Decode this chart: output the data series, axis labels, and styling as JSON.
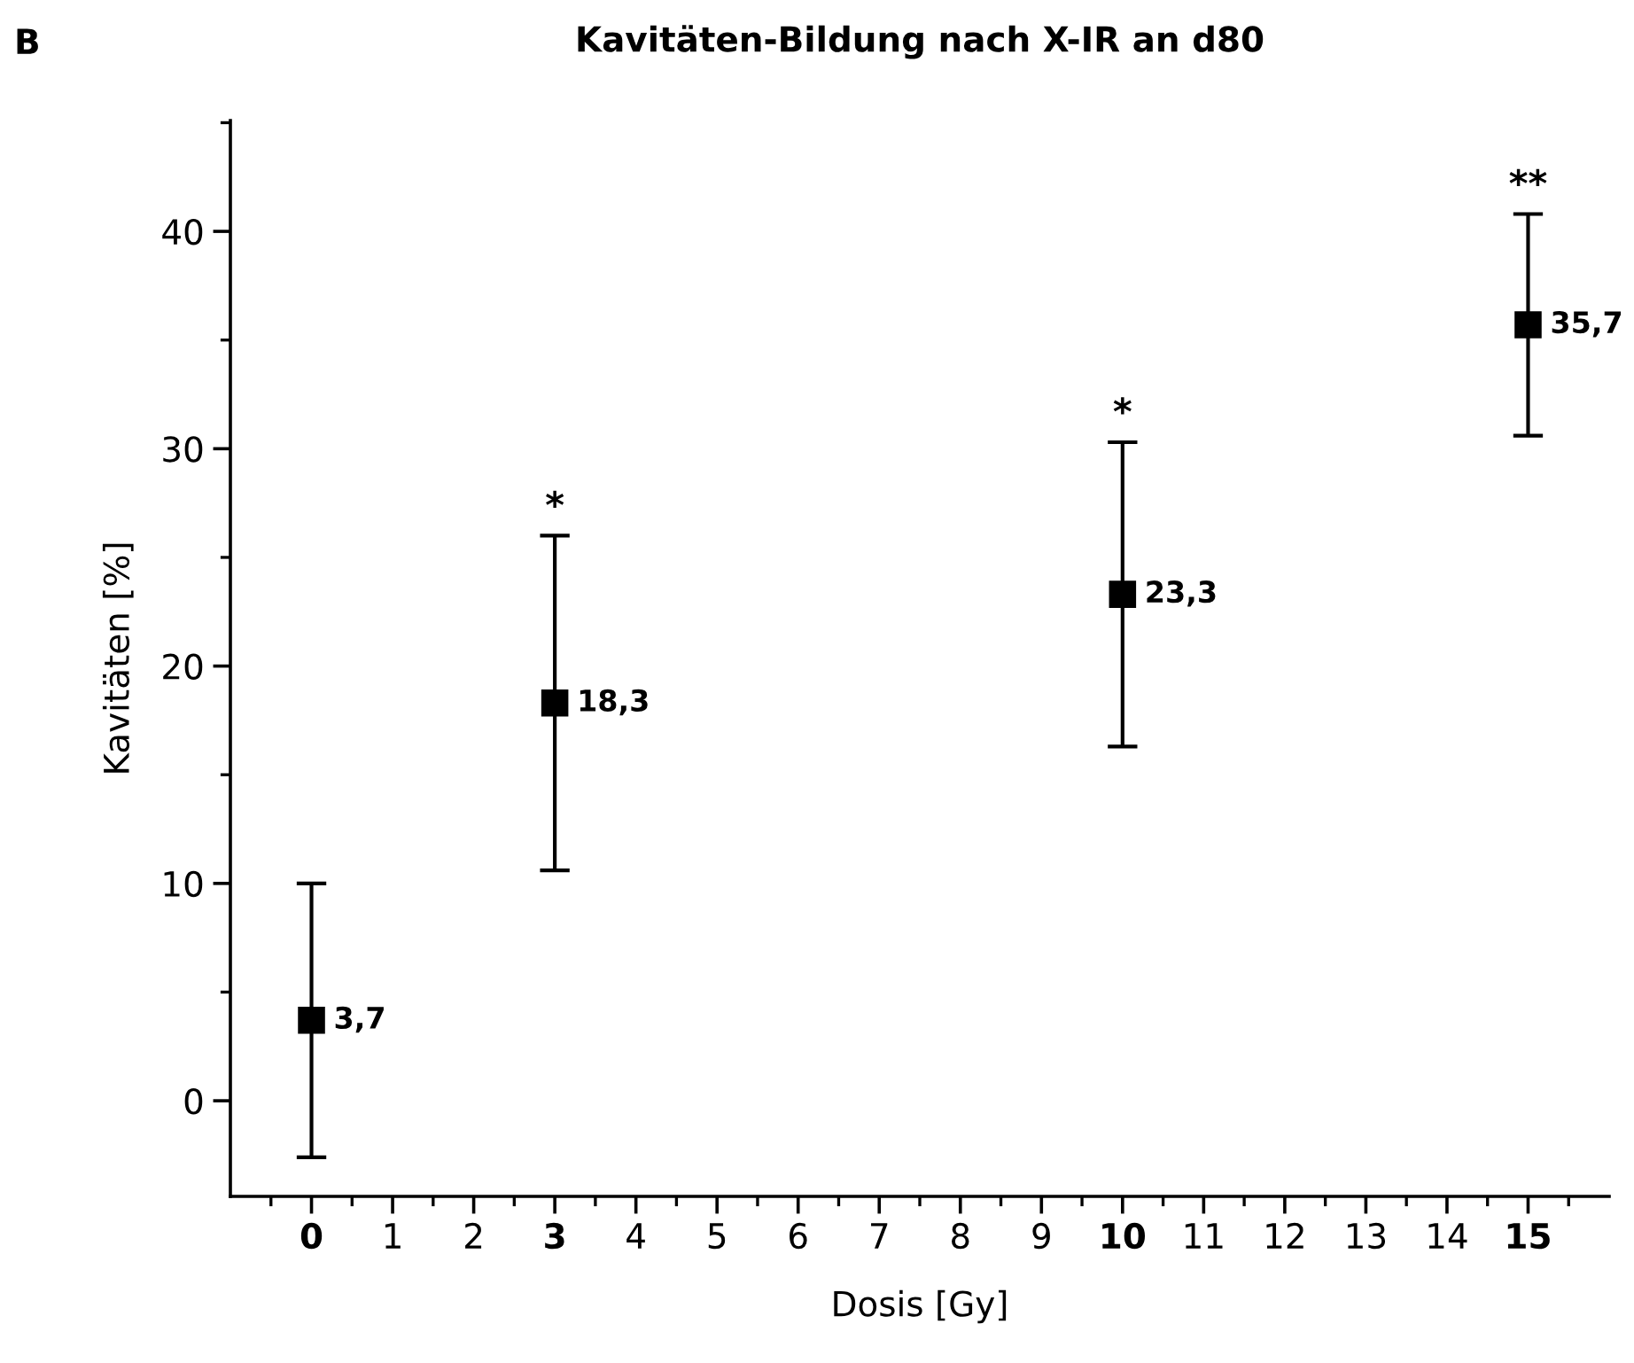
{
  "chart_data": {
    "type": "scatter",
    "title": "Kavitäten-Bildung nach X-IR an d80",
    "xlabel": "Dosis [Gy]",
    "ylabel": "Kavitäten [%]",
    "x": [
      0,
      3,
      10,
      15
    ],
    "values": [
      3.7,
      18.3,
      23.3,
      35.7
    ],
    "errors": [
      6.3,
      7.7,
      7.0,
      5.1
    ],
    "value_labels": [
      "3,7",
      "18,3",
      "23,3",
      "35,7"
    ],
    "color": "#000000",
    "marker": "square",
    "grid": false,
    "legend": false,
    "xlim": [
      -1,
      16
    ],
    "xticks": [
      0,
      1,
      2,
      3,
      4,
      5,
      6,
      7,
      8,
      9,
      10,
      11,
      12,
      13,
      14,
      15
    ],
    "ylim": [
      -4.4,
      45.1
    ],
    "yticks": [
      0,
      10,
      20,
      30,
      40
    ],
    "annotations": [
      "B",
      {
        "text": "*",
        "x": 3,
        "y": 26.0
      },
      {
        "text": "*",
        "x": 10,
        "y": 30.3
      },
      {
        "text": "**",
        "x": 15,
        "y": 40.8
      }
    ]
  }
}
